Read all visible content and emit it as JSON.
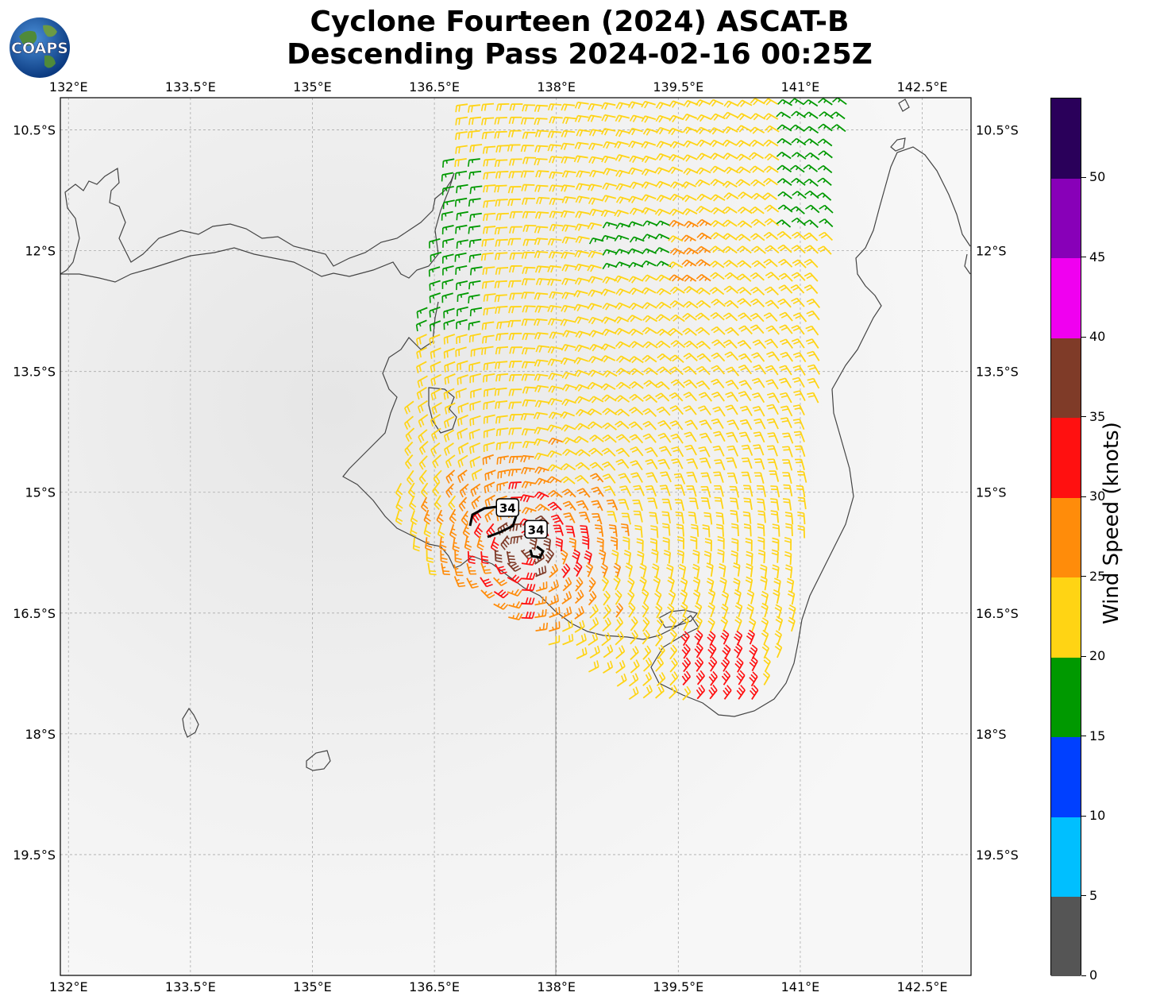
{
  "title_line1": "Cyclone Fourteen (2024) ASCAT-B",
  "title_line2": "Descending Pass 2024-02-16 00:25Z",
  "logo_text": "COAPS",
  "lon_ticks": [
    "132°E",
    "133.5°E",
    "135°E",
    "136.5°E",
    "138°E",
    "139.5°E",
    "141°E",
    "142.5°E"
  ],
  "lon_values": [
    132,
    133.5,
    135,
    136.5,
    138,
    139.5,
    141,
    142.5
  ],
  "lat_ticks": [
    "10.5°S",
    "12°S",
    "13.5°S",
    "15°S",
    "16.5°S",
    "18°S",
    "19.5°S"
  ],
  "lat_values": [
    -10.5,
    -12,
    -13.5,
    -15,
    -16.5,
    -18,
    -19.5
  ],
  "map_extent": {
    "lon_min": 131.9,
    "lon_max": 143.1,
    "lat_min": -21.0,
    "lat_max": -10.1
  },
  "contour_labels": [
    {
      "text": "34",
      "lon": 137.4,
      "lat": -15.2
    },
    {
      "text": "34",
      "lon": 137.75,
      "lat": -15.47
    }
  ],
  "colorbar": {
    "label": "Wind Speed (knots)",
    "tick_labels": [
      "0",
      "5",
      "10",
      "15",
      "20",
      "25",
      "30",
      "35",
      "40",
      "45",
      "50"
    ],
    "bins": [
      {
        "from": 0,
        "to": 5,
        "color": "#555555"
      },
      {
        "from": 5,
        "to": 10,
        "color": "#00bfff"
      },
      {
        "from": 10,
        "to": 15,
        "color": "#0040ff"
      },
      {
        "from": 15,
        "to": 20,
        "color": "#009900"
      },
      {
        "from": 20,
        "to": 25,
        "color": "#ffd414"
      },
      {
        "from": 25,
        "to": 30,
        "color": "#ff8c0a"
      },
      {
        "from": 30,
        "to": 35,
        "color": "#ff1010"
      },
      {
        "from": 35,
        "to": 40,
        "color": "#7f3b28"
      },
      {
        "from": 40,
        "to": 45,
        "color": "#f000f0"
      },
      {
        "from": 45,
        "to": 50,
        "color": "#8800b8"
      },
      {
        "from": 50,
        "to": 55,
        "color": "#2a005a"
      }
    ]
  }
}
